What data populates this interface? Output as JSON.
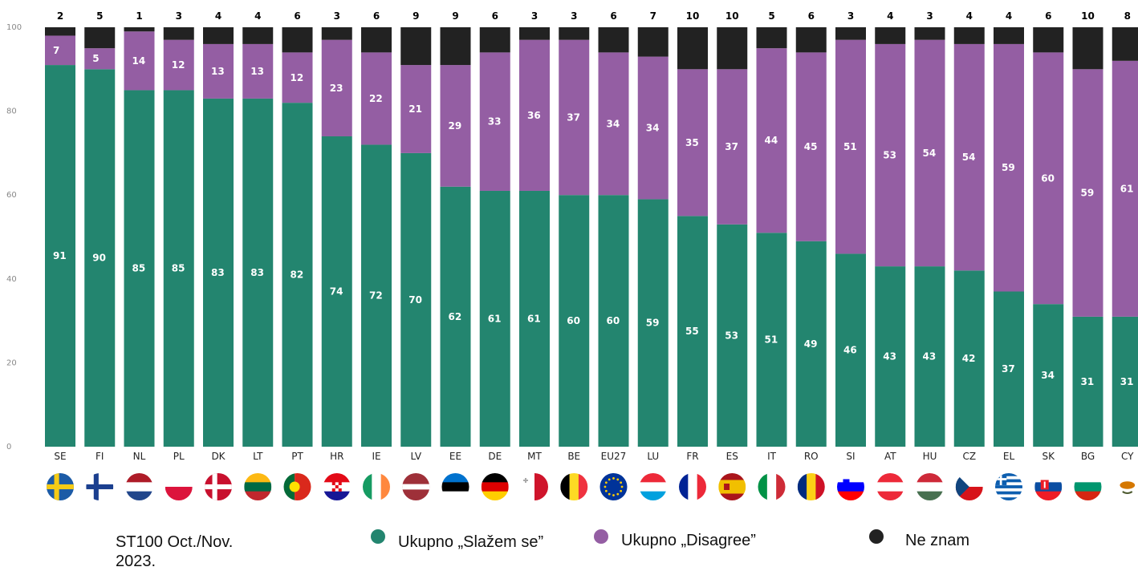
{
  "note": "ST100 Oct./Nov. 2023.",
  "legend": [
    {
      "label": "Ukupno „Slažem se”",
      "color": "#23856f"
    },
    {
      "label": "Ukupno „Disagree”",
      "color": "#945ea3"
    },
    {
      "label": "Ne znam",
      "color": "#222222"
    }
  ],
  "chart_data": {
    "type": "bar",
    "stacked": true,
    "percent": true,
    "ylim": [
      0,
      100
    ],
    "yticks": [
      0,
      20,
      40,
      60,
      80,
      100
    ],
    "categories": [
      "SE",
      "FI",
      "NL",
      "PL",
      "DK",
      "LT",
      "PT",
      "HR",
      "IE",
      "LV",
      "EE",
      "DE",
      "MT",
      "BE",
      "EU27",
      "LU",
      "FR",
      "ES",
      "IT",
      "RO",
      "SI",
      "AT",
      "HU",
      "CZ",
      "EL",
      "SK",
      "BG",
      "CY"
    ],
    "series": [
      {
        "name": "Ukupno „Slažem se”",
        "color": "#23856f",
        "values": [
          91,
          90,
          85,
          85,
          83,
          83,
          82,
          74,
          72,
          70,
          62,
          61,
          61,
          60,
          60,
          59,
          55,
          53,
          51,
          49,
          46,
          43,
          43,
          42,
          37,
          34,
          31,
          31
        ]
      },
      {
        "name": "Ukupno „Disagree”",
        "color": "#945ea3",
        "values": [
          7,
          5,
          14,
          12,
          13,
          13,
          12,
          23,
          22,
          21,
          29,
          33,
          36,
          37,
          34,
          34,
          35,
          37,
          44,
          45,
          51,
          53,
          54,
          54,
          59,
          60,
          59,
          61
        ]
      },
      {
        "name": "Ne znam",
        "color": "#222222",
        "values": [
          2,
          5,
          1,
          3,
          4,
          4,
          6,
          3,
          6,
          9,
          9,
          6,
          3,
          3,
          6,
          7,
          10,
          10,
          5,
          6,
          3,
          4,
          3,
          4,
          4,
          6,
          10,
          8
        ]
      }
    ],
    "flags": [
      "se-flag",
      "fi-flag",
      "nl-flag",
      "pl-flag",
      "dk-flag",
      "lt-flag",
      "pt-flag",
      "hr-flag",
      "ie-flag",
      "lv-flag",
      "ee-flag",
      "de-flag",
      "mt-flag",
      "be-flag",
      "eu-flag",
      "lu-flag",
      "fr-flag",
      "es-flag",
      "it-flag",
      "ro-flag",
      "si-flag",
      "at-flag",
      "hu-flag",
      "cz-flag",
      "el-flag",
      "sk-flag",
      "bg-flag",
      "cy-flag"
    ],
    "grid": false,
    "legend_position": "bottom"
  }
}
